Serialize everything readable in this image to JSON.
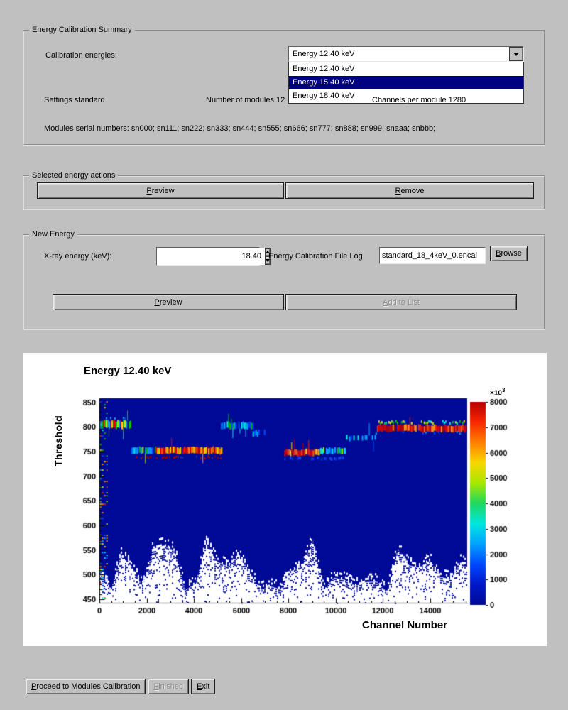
{
  "window": {
    "bg_color": "#c0c0c0",
    "highlight_color": "#000080"
  },
  "summary": {
    "title": "Energy Calibration Summary",
    "calibration_energies_label": "Calibration energies:",
    "combo_value": "Energy 12.40 keV",
    "dropdown_items": [
      {
        "label": "Energy 12.40 keV",
        "selected": false
      },
      {
        "label": "Energy 15.40 keV",
        "selected": true
      },
      {
        "label": "Energy 18.40 keV",
        "selected": false
      }
    ],
    "settings_label": "Settings standard",
    "modules_label": "Number of modules 12",
    "channels_label": "Channels per module 1280",
    "serials_label": "Modules serial numbers: sn000; sn111; sn222; sn333; sn444; sn555; sn666; sn777; sn888; sn999; snaaa; snbbb;"
  },
  "actions": {
    "title": "Selected energy actions",
    "preview": {
      "label": "Preview",
      "key": "P"
    },
    "remove": {
      "label": "Remove",
      "key": "R"
    }
  },
  "new_energy": {
    "title": "New Energy",
    "xray_label": "X-ray energy (keV):",
    "energy_value": "18.40",
    "file_log_label": "Energy Calibration File Log",
    "file_value": "standard_18_4keV_0.encal",
    "browse": {
      "label": "Browse",
      "key": "B"
    },
    "preview": {
      "label": "Preview",
      "key": "P"
    },
    "add": {
      "label": "Add to List",
      "key": "A"
    }
  },
  "footer": {
    "proceed": {
      "label": "Proceed to Modules Calibration",
      "key": "P"
    },
    "finished": {
      "label": "Finished",
      "key": "F"
    },
    "exit": {
      "label": "Exit",
      "key": "E"
    }
  },
  "chart_data": {
    "type": "heatmap",
    "title": "Energy 12.40 keV",
    "xlabel": "Channel Number",
    "ylabel": "Threshold",
    "xlim": [
      0,
      15560
    ],
    "ylim": [
      443,
      858
    ],
    "xticks": [
      0,
      2000,
      4000,
      6000,
      8000,
      10000,
      12000,
      14000
    ],
    "x_minor_step": 500,
    "yticks": [
      450,
      500,
      550,
      600,
      650,
      700,
      750,
      800,
      850
    ],
    "y_minor_step": 10,
    "zero_color": "#000a96",
    "colorbar": {
      "ticks": [
        0,
        1000,
        2000,
        3000,
        4000,
        5000,
        6000,
        7000,
        8000
      ],
      "scale_factor": "×10",
      "scale_exponent": "3",
      "colors": [
        "#000a96",
        "#0018c8",
        "#0048ff",
        "#00a2ff",
        "#00e8e0",
        "#20d860",
        "#a8e800",
        "#f8d800",
        "#ff8000",
        "#f82800",
        "#b80000"
      ]
    },
    "bands": [
      {
        "mode": "speckle",
        "x0": 20,
        "x1": 300,
        "y0": 450,
        "y1": 852,
        "density": 0.32,
        "palette": [
          "#00c000",
          "#00e8e0",
          "#0048ff",
          "#f82800",
          "#f8d800",
          "#ff8000",
          "#a8e800",
          "#00a2ff"
        ]
      },
      {
        "mode": "stripes",
        "x0": 30,
        "x1": 1330,
        "y": 805,
        "h": 15,
        "density": 0.92,
        "spikes": 0.12,
        "palette": [
          "#00c000",
          "#00e8e0",
          "#00a2ff",
          "#f83000",
          "#a8e800",
          "#f8d800",
          "#00c000",
          "#00a2ff",
          "#e00000"
        ]
      },
      {
        "mode": "stripes",
        "x0": 30,
        "x1": 1330,
        "y": 818,
        "h": 4,
        "density": 0.25,
        "spikes": 0,
        "palette": [
          "#0048ff",
          "#00a2ff"
        ]
      },
      {
        "mode": "stripes",
        "x0": 1330,
        "x1": 2380,
        "y": 752,
        "h": 13,
        "density": 0.92,
        "spikes": 0.14,
        "palette": [
          "#00a2ff",
          "#00e8e0",
          "#0048ff",
          "#00c000",
          "#a8e800"
        ]
      },
      {
        "mode": "stripes",
        "x0": 2380,
        "x1": 5150,
        "y": 752,
        "h": 13,
        "density": 0.96,
        "spikes": 0.06,
        "palette": [
          "#f82800",
          "#e00000",
          "#ff6000",
          "#b80000",
          "#ff9800",
          "#f8d800"
        ]
      },
      {
        "mode": "stripes",
        "x0": 1500,
        "x1": 5150,
        "y": 738,
        "h": 4,
        "density": 0.5,
        "spikes": 0,
        "palette": [
          "#980000",
          "#b80000",
          "#303090"
        ]
      },
      {
        "mode": "stripes",
        "x0": 5150,
        "x1": 6480,
        "y": 803,
        "h": 13,
        "density": 0.9,
        "spikes": 0.16,
        "palette": [
          "#00a2ff",
          "#00e8e0",
          "#0048ff",
          "#00c000"
        ]
      },
      {
        "mode": "stripes",
        "x0": 6480,
        "x1": 7000,
        "y": 787,
        "h": 11,
        "density": 0.85,
        "spikes": 0.1,
        "palette": [
          "#0048ff",
          "#00a2ff",
          "#00e8e0"
        ]
      },
      {
        "mode": "stripes",
        "x0": 7820,
        "x1": 9280,
        "y": 748,
        "h": 12,
        "density": 0.96,
        "spikes": 0.06,
        "palette": [
          "#f82800",
          "#e00000",
          "#ff6000",
          "#b80000",
          "#f8d800"
        ]
      },
      {
        "mode": "stripes",
        "x0": 7820,
        "x1": 10380,
        "y": 736,
        "h": 6,
        "density": 0.6,
        "spikes": 0,
        "palette": [
          "#0030d0",
          "#2040ff",
          "#001878"
        ]
      },
      {
        "mode": "stripes",
        "x0": 9280,
        "x1": 10380,
        "y": 751,
        "h": 12,
        "density": 0.9,
        "spikes": 0.1,
        "palette": [
          "#00a2ff",
          "#00e8e0",
          "#0048ff",
          "#00c000",
          "#a8e800"
        ]
      },
      {
        "mode": "stripes",
        "x0": 10380,
        "x1": 11680,
        "y": 777,
        "h": 10,
        "density": 0.5,
        "spikes": 0.12,
        "palette": [
          "#0048ff",
          "#00a2ff",
          "#00e8e0"
        ]
      },
      {
        "mode": "stripes",
        "x0": 11680,
        "x1": 15520,
        "y": 797,
        "h": 13,
        "density": 0.96,
        "spikes": 0.07,
        "palette": [
          "#f82800",
          "#e00000",
          "#ff6000",
          "#b80000",
          "#ff9800"
        ]
      },
      {
        "mode": "stripes",
        "x0": 11680,
        "x1": 15520,
        "y": 809,
        "h": 5,
        "density": 0.5,
        "spikes": 0,
        "palette": [
          "#00c000",
          "#a8e800",
          "#00e8e0",
          "#f8d800"
        ]
      },
      {
        "mode": "stripes",
        "x0": 11680,
        "x1": 15520,
        "y": 788,
        "h": 4,
        "density": 0.22,
        "spikes": 0,
        "palette": [
          "#0048ff",
          "#00a2ff"
        ]
      }
    ],
    "noise": {
      "seed": 77,
      "step": 450,
      "boundary_min": 462,
      "boundary_max": 572
    }
  }
}
